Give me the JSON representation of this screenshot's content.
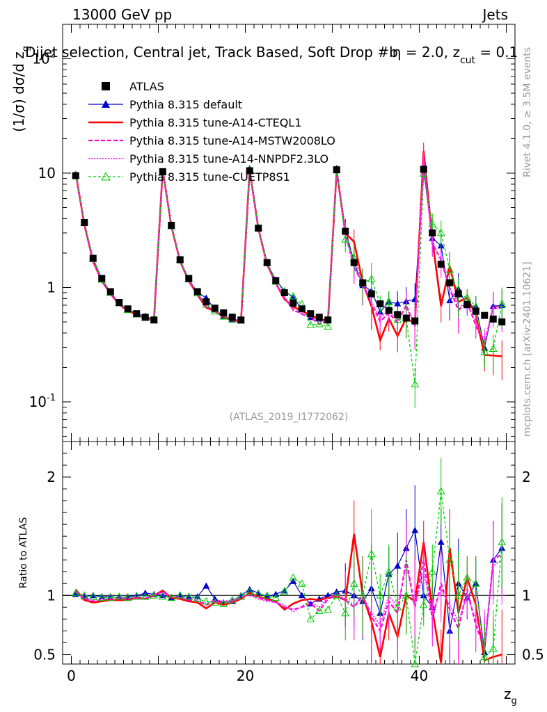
{
  "header": {
    "left": "13000 GeV pp",
    "right": "Jets"
  },
  "side_labels": {
    "rivet": "Rivet 4.1.0, ≥ 3.5M events",
    "mcplots": "mcplots.cern.ch [arXiv:2401.10621]"
  },
  "chart_data": {
    "type": "scatter",
    "title": "Dijet selection, Central jet, Track Based, Soft Drop #b = 2.0, z_cut = 0.1",
    "title_parts": {
      "main": "Dijet selection, Central jet, Track Based, Soft Drop #b",
      "eta": "η = 2.0, z",
      "cut": "cut",
      "tail": " = 0.1"
    },
    "watermark": "(ATLAS_2019_I1772062)",
    "xlabel": "z",
    "xlabel_sub": "g",
    "ylabel": "(1/σ) dσ/d z",
    "ylabel_sub": "g",
    "ratio_ylabel": "Ratio to ATLAS",
    "xlim": [
      -1,
      51
    ],
    "ylim": [
      0.045,
      200
    ],
    "ylog": true,
    "ratio_ylim": [
      0.42,
      2.3
    ],
    "x_ticks": [
      0,
      20,
      40
    ],
    "x_tick_labels": [
      "0",
      "20",
      "40"
    ],
    "y_major_ticks": [
      0.1,
      1,
      10,
      100
    ],
    "y_tick_labels": [
      "10^-1",
      "1",
      "10",
      "10^2"
    ],
    "ratio_ticks": [
      0.5,
      1,
      2
    ],
    "ratio_tick_labels": [
      "0.5",
      "1",
      "2"
    ],
    "x": [
      0.5,
      1.5,
      2.5,
      3.5,
      4.5,
      5.5,
      6.5,
      7.5,
      8.5,
      9.5,
      10.5,
      11.5,
      12.5,
      13.5,
      14.5,
      15.5,
      16.5,
      17.5,
      18.5,
      19.5,
      20.5,
      21.5,
      22.5,
      23.5,
      24.5,
      25.5,
      26.5,
      27.5,
      28.5,
      29.5,
      30.5,
      31.5,
      32.5,
      33.5,
      34.5,
      35.5,
      36.5,
      37.5,
      38.5,
      39.5,
      40.5,
      41.5,
      42.5,
      43.5,
      44.5,
      45.5,
      46.5,
      47.5,
      48.5,
      49.5
    ],
    "atlas": {
      "label": "ATLAS",
      "values": [
        9.5,
        3.7,
        1.8,
        1.2,
        0.92,
        0.74,
        0.65,
        0.59,
        0.55,
        0.52,
        10.3,
        3.5,
        1.75,
        1.2,
        0.92,
        0.75,
        0.66,
        0.6,
        0.55,
        0.52,
        10.5,
        3.3,
        1.65,
        1.15,
        0.9,
        0.73,
        0.65,
        0.59,
        0.55,
        0.52,
        10.7,
        3.1,
        1.65,
        1.1,
        0.88,
        0.72,
        0.63,
        0.58,
        0.54,
        0.51,
        10.8,
        3.0,
        1.6,
        1.1,
        0.88,
        0.71,
        0.62,
        0.57,
        0.53,
        0.5
      ]
    },
    "series": [
      {
        "name": "Pythia 8.315 default",
        "color": "#0000cc",
        "ratio": [
          1.01,
          0.99,
          1.0,
          0.99,
          0.99,
          0.98,
          0.99,
          1.0,
          1.02,
          1.01,
          1.0,
          0.98,
          1.0,
          0.98,
          0.99,
          1.08,
          0.97,
          0.94,
          0.95,
          1.0,
          1.05,
          1.02,
          0.99,
          1.01,
          1.04,
          1.12,
          1.0,
          0.93,
          0.97,
          1.0,
          1.03,
          1.04,
          1.0,
          0.95,
          1.06,
          0.85,
          1.18,
          1.25,
          1.4,
          1.55,
          1.0,
          0.9,
          1.45,
          0.7,
          1.1,
          0.98,
          1.1,
          0.52,
          1.3,
          1.4
        ]
      },
      {
        "name": "Pythia 8.315 tune-A14-CTEQL1",
        "color": "#ff0000",
        "ratio": [
          1.05,
          0.96,
          0.94,
          0.95,
          0.96,
          0.96,
          0.96,
          0.98,
          0.97,
          1.0,
          1.04,
          0.98,
          0.97,
          0.95,
          0.94,
          0.89,
          0.94,
          0.92,
          0.94,
          0.97,
          1.02,
          0.99,
          0.97,
          0.95,
          0.88,
          0.93,
          0.96,
          0.97,
          0.96,
          0.98,
          0.99,
          0.96,
          1.52,
          1.0,
          0.78,
          0.48,
          0.85,
          0.65,
          1.0,
          0.95,
          1.45,
          0.88,
          0.43,
          1.4,
          0.85,
          1.15,
          0.92,
          0.45,
          0.48,
          0.5
        ]
      },
      {
        "name": "Pythia 8.315 tune-A14-MSTW2008LO",
        "color": "#ff00cc",
        "ratio": [
          1.04,
          0.97,
          0.95,
          0.96,
          0.97,
          0.97,
          0.97,
          0.98,
          0.97,
          1.0,
          1.03,
          0.99,
          0.98,
          0.96,
          0.95,
          0.92,
          0.95,
          0.94,
          0.95,
          0.98,
          1.01,
          0.98,
          0.96,
          0.94,
          0.9,
          0.88,
          0.9,
          0.93,
          0.87,
          0.97,
          1.0,
          0.96,
          0.9,
          1.0,
          0.82,
          0.7,
          0.95,
          0.85,
          1.3,
          0.9,
          1.3,
          0.8,
          1.1,
          0.88,
          0.72,
          1.05,
          0.75,
          0.55,
          1.3,
          1.35
        ]
      },
      {
        "name": "Pythia 8.315 tune-A14-NNPDF2.3LO",
        "color": "#ff33ff",
        "ratio": [
          1.03,
          0.98,
          0.96,
          0.97,
          0.97,
          0.98,
          0.98,
          0.99,
          0.98,
          1.01,
          1.02,
          0.99,
          0.98,
          0.97,
          0.96,
          0.93,
          0.96,
          0.95,
          0.96,
          0.99,
          1.0,
          0.97,
          0.95,
          0.94,
          0.92,
          0.86,
          0.91,
          0.95,
          0.9,
          0.98,
          1.01,
          0.97,
          0.92,
          0.98,
          0.85,
          0.75,
          1.0,
          0.9,
          1.25,
          0.92,
          1.2,
          0.85,
          1.05,
          0.92,
          0.78,
          1.0,
          0.8,
          0.6,
          1.25,
          1.3
        ]
      },
      {
        "name": "Pythia 8.315 tune-CUETP8S1",
        "color": "#00cc00",
        "ratio": [
          1.02,
          1.0,
          0.99,
          0.98,
          0.98,
          0.99,
          0.98,
          0.99,
          0.99,
          1.0,
          0.99,
          0.98,
          1.0,
          0.99,
          0.97,
          0.95,
          0.94,
          0.93,
          0.96,
          0.99,
          1.03,
          1.01,
          1.0,
          0.98,
          1.03,
          1.15,
          1.1,
          0.8,
          0.87,
          0.88,
          1.0,
          0.85,
          1.1,
          1.0,
          1.35,
          1.0,
          1.2,
          0.9,
          1.0,
          0.28,
          0.92,
          1.2,
          1.88,
          1.3,
          1.0,
          1.15,
          1.1,
          0.48,
          0.55,
          1.45
        ]
      }
    ]
  }
}
